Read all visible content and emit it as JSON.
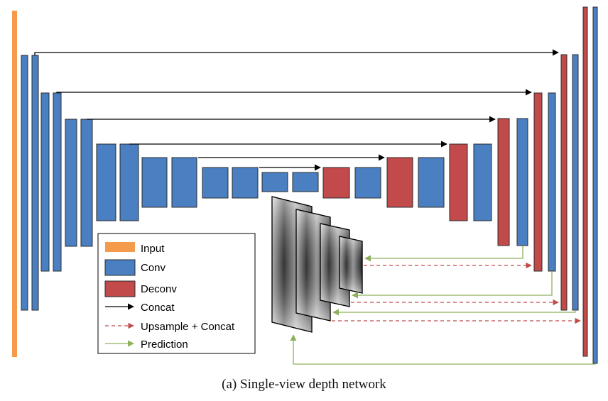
{
  "caption": "(a) Single-view depth network",
  "legend": {
    "items": [
      {
        "key": "input",
        "label": "Input"
      },
      {
        "key": "conv",
        "label": "Conv"
      },
      {
        "key": "deconv",
        "label": "Deconv"
      },
      {
        "key": "concat",
        "label": "Concat"
      },
      {
        "key": "upsample",
        "label": "Upsample + Concat"
      },
      {
        "key": "prediction",
        "label": "Prediction"
      }
    ]
  },
  "colors": {
    "input": "#f39b4a",
    "conv": "#4a7fc1",
    "deconv": "#c24a4a",
    "concat": "#000000",
    "upsample": "#c24a4a",
    "prediction": "#8db05a",
    "block_stroke": "#2b2b2b"
  }
}
